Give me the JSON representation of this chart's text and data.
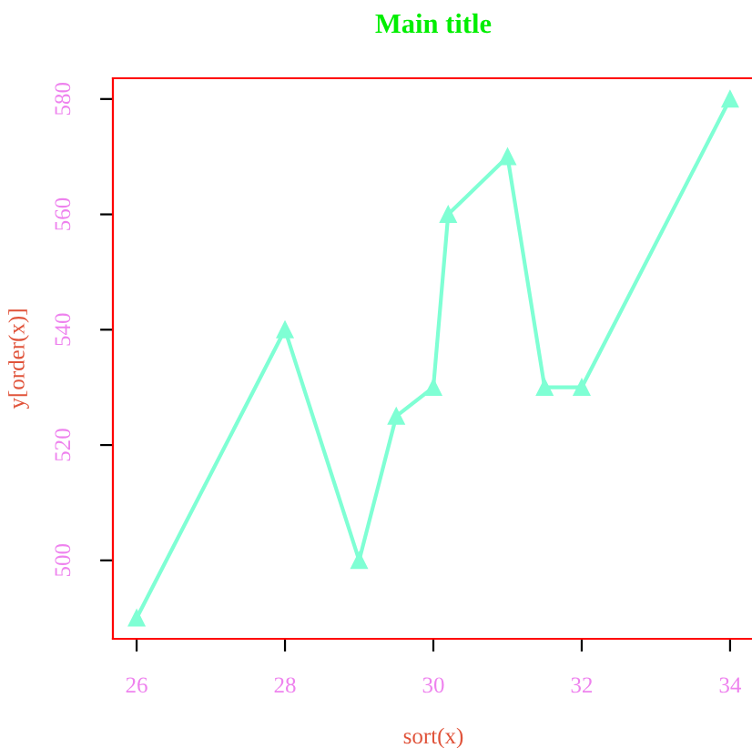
{
  "chart_data": {
    "type": "line",
    "title": "Main title",
    "xlabel": "sort(x)",
    "ylabel": "y[order(x)]",
    "series": [
      {
        "color": "#7fffd4",
        "x": [
          26,
          28,
          29,
          29.5,
          30,
          30.2,
          31,
          31.5,
          32,
          34
        ],
        "values": [
          490,
          540,
          500,
          525,
          530,
          560,
          570,
          530,
          530,
          580
        ]
      }
    ],
    "xlim": [
      25.68,
      34.32
    ],
    "ylim": [
      486.4,
      583.6
    ],
    "xticks": [
      26,
      28,
      30,
      32,
      34
    ],
    "yticks": [
      500,
      520,
      540,
      560,
      580
    ],
    "marker": "triangle",
    "line_style": "solid",
    "grid": false,
    "legend": false
  }
}
